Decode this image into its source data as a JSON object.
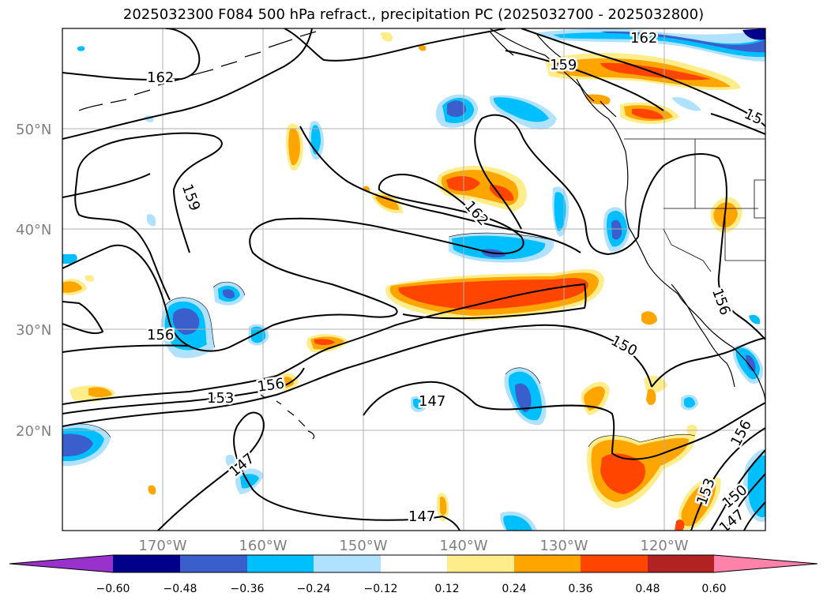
{
  "title": "2025032300 F084 500 hPa refract., precipitation PC (2025032700 - 2025032800)",
  "latitude_labels": [
    "50°N",
    "40°N",
    "30°N",
    "20°N"
  ],
  "longitude_labels": [
    "170°W",
    "160°W",
    "150°W",
    "140°W",
    "130°W",
    "120°W"
  ],
  "contour_labels": [
    "162",
    "162",
    "159",
    "159",
    "15",
    "162",
    "156",
    "156",
    "153",
    "150",
    "147",
    "147",
    "147",
    "156",
    "156",
    "153",
    "150",
    "147"
  ],
  "colorbar": {
    "labels": [
      "−0.60",
      "−0.48",
      "−0.36",
      "−0.24",
      "−0.12",
      "0.12",
      "0.24",
      "0.36",
      "0.48",
      "0.60"
    ],
    "colors": [
      "#9932cc",
      "#00008b",
      "#3a5fcd",
      "#00bfff",
      "#b0e2ff",
      "#ffffff",
      "#ffec8b",
      "#ffa500",
      "#ff4500",
      "#b22222",
      "#ff82ab"
    ]
  },
  "fill_colors": {
    "light_blue": "#b0e2ff",
    "cyan": "#00bfff",
    "blue": "#3a5fcd",
    "navy": "#00008b",
    "yellow": "#ffec8b",
    "orange": "#ffa500",
    "red_orange": "#ff4500"
  }
}
